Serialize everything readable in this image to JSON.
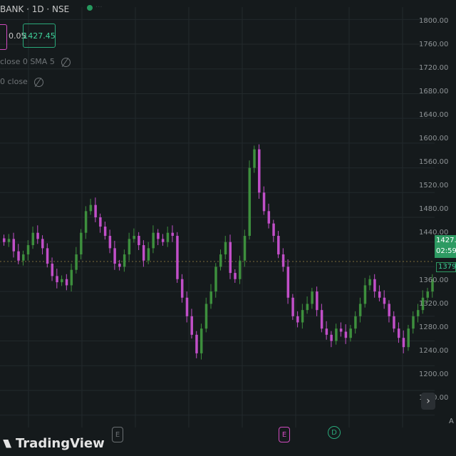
{
  "header": {
    "symbol_text": "BANK · 1D · NSE",
    "faded_text": "...",
    "spread": "0.05",
    "buy_price": "1427.45"
  },
  "indicators": [
    {
      "label": "close 0 SMA 5",
      "icon": "eye-off-icon"
    },
    {
      "label": "0 close",
      "icon": "eye-off-icon"
    }
  ],
  "price_axis": {
    "labels": [
      "1800.00",
      "1760.00",
      "1720.00",
      "1680.00",
      "1640.00",
      "1600.00",
      "1560.00",
      "1520.00",
      "1480.00",
      "1440.00",
      "1360.00",
      "1320.00",
      "1280.00",
      "1240.00",
      "1200.00",
      "1160.00"
    ],
    "current_price": "1427.4",
    "countdown": "02:59:",
    "previous_close": "1379.1"
  },
  "branding": {
    "logo_text": "TradingView"
  },
  "markers": [
    {
      "letter": "E",
      "color": "#6a6f72"
    },
    {
      "letter": "E",
      "color": "#d04bbf"
    },
    {
      "letter": "D",
      "color": "#2aa97a"
    }
  ],
  "scroll_button": "›",
  "corner_label": "A",
  "colors": {
    "up": "#3d8f3d",
    "down": "#c14fc8",
    "background": "#151a1c",
    "grid": "#22292c",
    "accent_green": "#2d9a62"
  },
  "chart_data": {
    "type": "candlestick",
    "y_range": [
      1140,
      1820
    ],
    "approx_closes": [
      1440,
      1445,
      1425,
      1410,
      1420,
      1435,
      1455,
      1445,
      1430,
      1405,
      1385,
      1375,
      1380,
      1370,
      1395,
      1420,
      1455,
      1490,
      1500,
      1480,
      1465,
      1450,
      1430,
      1405,
      1400,
      1420,
      1445,
      1450,
      1435,
      1410,
      1430,
      1455,
      1445,
      1440,
      1455,
      1450,
      1380,
      1350,
      1320,
      1290,
      1260,
      1300,
      1340,
      1360,
      1400,
      1420,
      1440,
      1390,
      1380,
      1410,
      1450,
      1560,
      1590,
      1520,
      1490,
      1470,
      1450,
      1420,
      1400,
      1350,
      1320,
      1310,
      1330,
      1340,
      1360,
      1330,
      1300,
      1290,
      1280,
      1300,
      1295,
      1285,
      1300,
      1320,
      1340,
      1370,
      1380,
      1360,
      1350,
      1340,
      1320,
      1300,
      1285,
      1270,
      1300,
      1320,
      1330,
      1350,
      1360,
      1380
    ]
  }
}
